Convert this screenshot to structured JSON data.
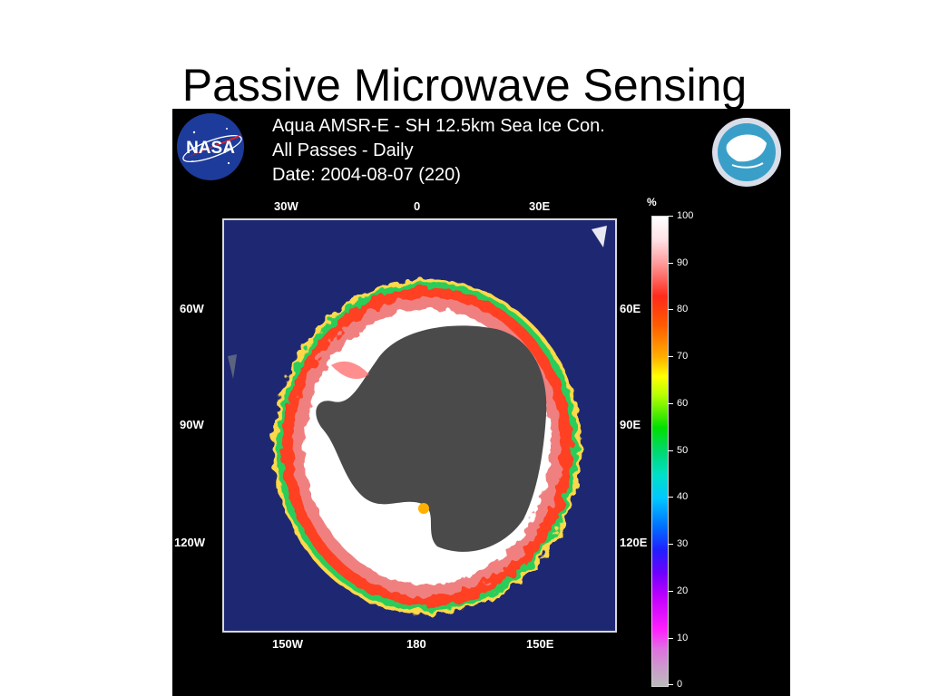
{
  "slide": {
    "title": "Passive Microwave Sensing"
  },
  "figure": {
    "logo_left": {
      "text": "NASA",
      "icon": "nasa-logo-icon"
    },
    "logo_right": {
      "icon": "globe-logo-icon"
    },
    "header_lines": [
      "Aqua  AMSR-E - SH 12.5km Sea Ice Con.",
      "All Passes - Daily",
      "Date: 2004-08-07 (220)"
    ],
    "map": {
      "top_labels": [
        "30W",
        "0",
        "30E"
      ],
      "bottom_labels": [
        "150W",
        "180",
        "150E"
      ],
      "left_labels": [
        "60W",
        "90W",
        "120W"
      ],
      "right_labels": [
        "60E",
        "90E",
        "120E"
      ],
      "ocean_color": "#1e2872",
      "land_color": "#4a4a4a",
      "ice_high_color": "#ffffff",
      "ice_edge_color": "#ff2a1a"
    },
    "colorbar": {
      "unit": "%",
      "ticks": [
        "100",
        "90",
        "80",
        "70",
        "60",
        "50",
        "40",
        "30",
        "20",
        "10",
        "0"
      ],
      "max": 100,
      "min": 0
    }
  }
}
